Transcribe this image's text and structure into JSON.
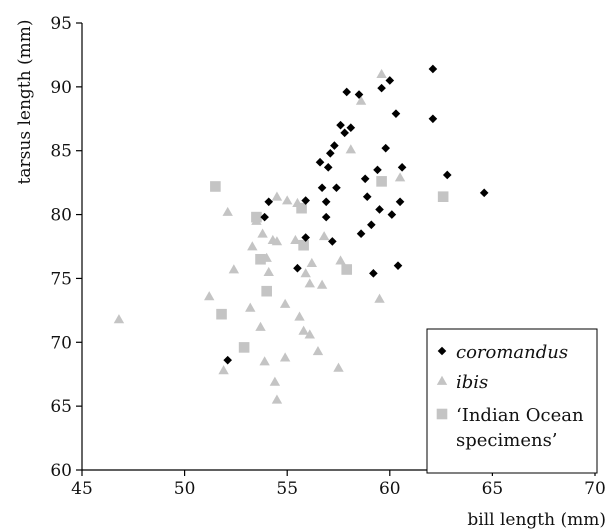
{
  "chart_data": {
    "type": "scatter",
    "xlabel": "bill length (mm)",
    "ylabel": "tarsus length (mm)",
    "xlim": [
      45,
      70
    ],
    "ylim": [
      60,
      95
    ],
    "xticks": [
      "45",
      "50",
      "55",
      "60",
      "65",
      "70"
    ],
    "yticks": [
      "60",
      "65",
      "70",
      "75",
      "80",
      "85",
      "90",
      "95"
    ],
    "grid": false,
    "legend_position": "bottom-right",
    "series": [
      {
        "name": "coromandus",
        "italic": true,
        "marker": "diamond",
        "color": "#000000",
        "points": [
          [
            52.1,
            68.6
          ],
          [
            53.9,
            79.8
          ],
          [
            54.1,
            81.0
          ],
          [
            55.5,
            75.8
          ],
          [
            55.9,
            78.2
          ],
          [
            55.9,
            81.1
          ],
          [
            56.6,
            84.1
          ],
          [
            56.7,
            82.1
          ],
          [
            56.9,
            81.0
          ],
          [
            56.9,
            79.8
          ],
          [
            57.0,
            83.7
          ],
          [
            57.1,
            84.8
          ],
          [
            57.2,
            77.9
          ],
          [
            57.3,
            85.4
          ],
          [
            57.4,
            82.1
          ],
          [
            57.6,
            87.0
          ],
          [
            57.8,
            86.4
          ],
          [
            57.9,
            89.6
          ],
          [
            58.1,
            86.8
          ],
          [
            58.5,
            89.4
          ],
          [
            58.6,
            78.5
          ],
          [
            58.8,
            82.8
          ],
          [
            58.9,
            81.4
          ],
          [
            59.1,
            79.2
          ],
          [
            59.2,
            75.4
          ],
          [
            59.4,
            83.5
          ],
          [
            59.5,
            80.4
          ],
          [
            59.6,
            89.9
          ],
          [
            59.8,
            85.2
          ],
          [
            60.0,
            90.5
          ],
          [
            60.1,
            80.0
          ],
          [
            60.3,
            87.9
          ],
          [
            60.4,
            76.0
          ],
          [
            60.5,
            81.0
          ],
          [
            60.6,
            83.7
          ],
          [
            62.1,
            91.4
          ],
          [
            62.1,
            87.5
          ],
          [
            62.8,
            83.1
          ],
          [
            64.6,
            81.7
          ]
        ]
      },
      {
        "name": "ibis",
        "italic": true,
        "marker": "triangle",
        "color": "#c4c4c4",
        "points": [
          [
            46.8,
            71.8
          ],
          [
            51.2,
            73.6
          ],
          [
            51.9,
            67.8
          ],
          [
            52.1,
            80.2
          ],
          [
            52.4,
            75.7
          ],
          [
            53.2,
            72.7
          ],
          [
            53.3,
            77.5
          ],
          [
            53.5,
            79.5
          ],
          [
            53.7,
            71.2
          ],
          [
            53.8,
            78.5
          ],
          [
            53.9,
            68.5
          ],
          [
            54.0,
            76.6
          ],
          [
            54.1,
            75.5
          ],
          [
            54.3,
            78.0
          ],
          [
            54.4,
            66.9
          ],
          [
            54.5,
            65.5
          ],
          [
            54.5,
            77.9
          ],
          [
            54.5,
            81.4
          ],
          [
            54.9,
            68.8
          ],
          [
            54.9,
            73.0
          ],
          [
            55.0,
            81.1
          ],
          [
            55.4,
            78.0
          ],
          [
            55.5,
            80.9
          ],
          [
            55.6,
            72.0
          ],
          [
            55.8,
            70.9
          ],
          [
            55.9,
            75.4
          ],
          [
            56.1,
            74.6
          ],
          [
            56.1,
            70.6
          ],
          [
            56.2,
            76.2
          ],
          [
            56.5,
            69.3
          ],
          [
            56.7,
            74.5
          ],
          [
            56.8,
            78.3
          ],
          [
            57.5,
            68.0
          ],
          [
            57.6,
            76.4
          ],
          [
            58.1,
            85.1
          ],
          [
            58.6,
            88.9
          ],
          [
            59.5,
            73.4
          ],
          [
            59.6,
            91.0
          ],
          [
            60.5,
            82.9
          ]
        ]
      },
      {
        "name": "‘Indian Ocean specimens’",
        "italic": false,
        "marker": "square",
        "color": "#c4c4c4",
        "points": [
          [
            51.5,
            82.2
          ],
          [
            51.8,
            72.2
          ],
          [
            52.9,
            69.6
          ],
          [
            53.5,
            79.8
          ],
          [
            53.7,
            76.5
          ],
          [
            54.0,
            74.0
          ],
          [
            55.7,
            80.5
          ],
          [
            55.8,
            77.6
          ],
          [
            57.9,
            75.7
          ],
          [
            59.6,
            82.6
          ],
          [
            62.6,
            81.4
          ]
        ]
      }
    ],
    "legend": [
      {
        "line1": "coromandus",
        "line2": ""
      },
      {
        "line1": "ibis",
        "line2": ""
      },
      {
        "line1": "‘Indian Ocean",
        "line2": "specimens’"
      }
    ]
  }
}
